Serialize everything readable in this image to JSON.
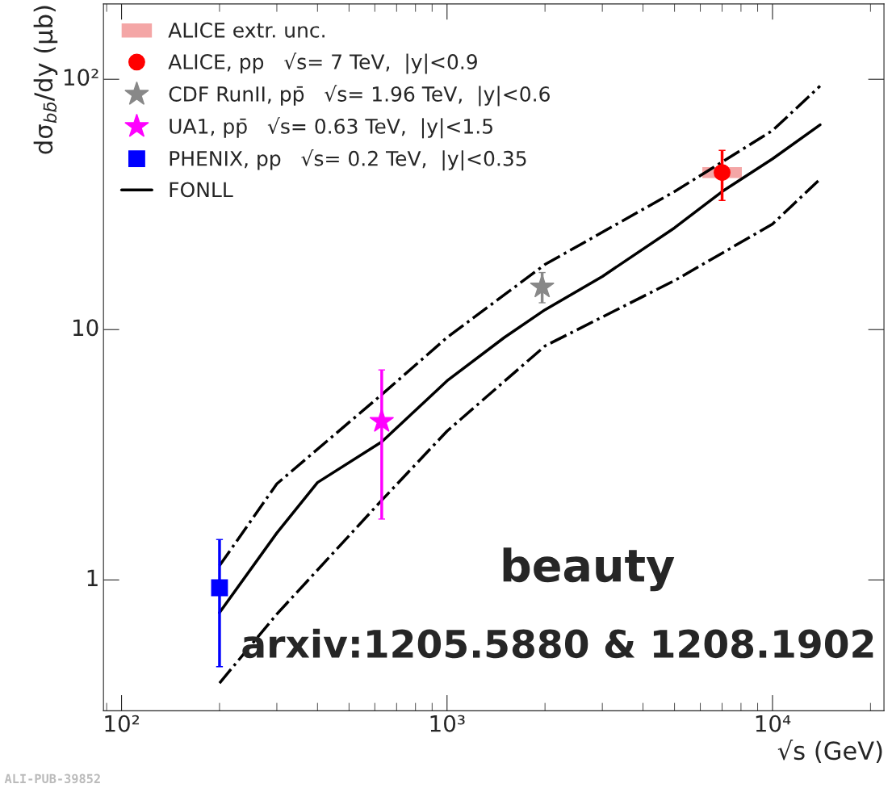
{
  "chart_data": {
    "type": "scatter",
    "xlabel": "√s (GeV)",
    "ylabel": "dσ$_{bb̄}$/dy (μb)",
    "log": "xy",
    "grid": false,
    "legend": "top left",
    "xlim": [
      88,
      22000
    ],
    "ylim": [
      0.3,
      200
    ],
    "xticks": [
      {
        "value": 100,
        "label": "10²"
      },
      {
        "value": 1000,
        "label": "10³"
      },
      {
        "value": 10000,
        "label": "10⁴"
      }
    ],
    "yticks": [
      1,
      10,
      {
        "value": 100,
        "label": "10²"
      }
    ],
    "series": [
      {
        "name": "ALICE extr. unc.",
        "type": "bar",
        "color": "#f08080",
        "x": [
          7000
        ],
        "values": [
          4.3
        ],
        "base": [
          40.3
        ]
      },
      {
        "name": "ALICE, pp   √s= 7 TeV,  |y|<0.9",
        "marker": "circle",
        "color": "#ff0000",
        "x": [
          7000
        ],
        "values": [
          42.4
        ],
        "errors": [
          [
            32.8,
            52
          ]
        ]
      },
      {
        "name": "CDF RunII, pp̄   √s= 1.96 TeV,  |y|<0.6",
        "marker": "star",
        "color": "#888888",
        "x": [
          1960
        ],
        "values": [
          14.8
        ],
        "errors": [
          [
            12.8,
            16.9
          ]
        ]
      },
      {
        "name": "UA1, pp̄   √s= 0.63 TeV,  |y|<1.5",
        "marker": "star",
        "color": "#ff00ff",
        "x": [
          630
        ],
        "values": [
          4.3
        ],
        "errors": [
          [
            1.75,
            6.9
          ]
        ]
      },
      {
        "name": "PHENIX, pp   √s= 0.2 TeV,  |y|<0.35",
        "marker": "square",
        "color": "#0000ff",
        "x": [
          200
        ],
        "values": [
          0.93
        ],
        "errors": [
          [
            0.45,
            1.45
          ]
        ]
      },
      {
        "name": "FONLL",
        "type": "line",
        "line_style": "solid",
        "color": "#000000",
        "x": [
          200,
          300,
          400,
          630,
          1000,
          1500,
          2000,
          3000,
          5000,
          7000,
          10000,
          14000
        ],
        "values": [
          0.74,
          1.54,
          2.45,
          3.56,
          6.24,
          9.3,
          12.0,
          16.3,
          25.5,
          35.6,
          48.1,
          65.8
        ]
      },
      {
        "type": "line",
        "line_style": "dashdot",
        "color": "#000000",
        "x": [
          200,
          300,
          630,
          1000,
          2000,
          5000,
          10000,
          14000
        ],
        "values": [
          1.14,
          2.42,
          5.5,
          9.3,
          18.2,
          35.6,
          62.4,
          94
        ]
      },
      {
        "type": "line",
        "line_style": "dashdot",
        "color": "#000000",
        "x": [
          200,
          300,
          630,
          1000,
          2000,
          5000,
          10000,
          14000
        ],
        "values": [
          0.387,
          0.73,
          2.08,
          3.93,
          8.6,
          15.7,
          26.4,
          39.9
        ]
      }
    ],
    "annotations": [
      "beauty",
      "arxiv:1205.5880 & 1208.1902",
      "ALI-PUB-39852"
    ]
  }
}
